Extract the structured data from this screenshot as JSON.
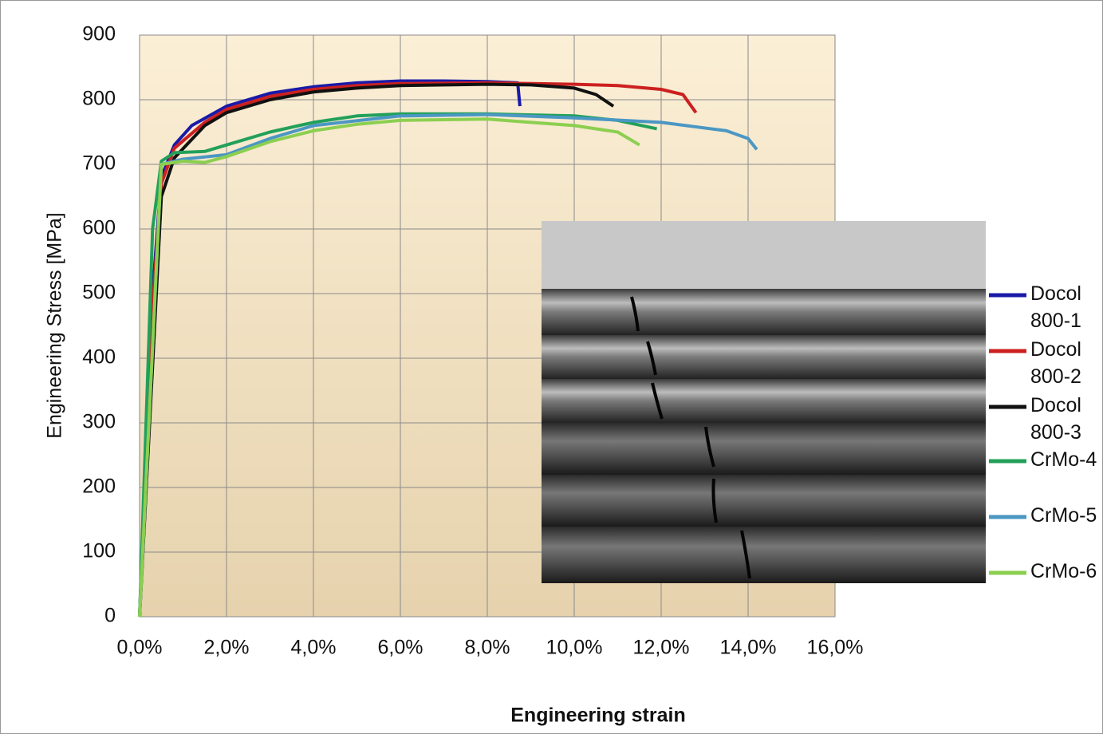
{
  "chart_data": {
    "type": "line",
    "x_label": "Engineering strain",
    "y_label": "Engineering Stress [MPa]",
    "xlim": [
      0,
      16
    ],
    "ylim": [
      0,
      900
    ],
    "xticks": [
      {
        "value": 0,
        "label": "0,0%"
      },
      {
        "value": 2,
        "label": "2,0%"
      },
      {
        "value": 4,
        "label": "4,0%"
      },
      {
        "value": 6,
        "label": "6,0%"
      },
      {
        "value": 8,
        "label": "8,0%"
      },
      {
        "value": 10,
        "label": "10,0%"
      },
      {
        "value": 12,
        "label": "12,0%"
      },
      {
        "value": 14,
        "label": "14,0%"
      },
      {
        "value": 16,
        "label": "16,0%"
      }
    ],
    "yticks": [
      0,
      100,
      200,
      300,
      400,
      500,
      600,
      700,
      800,
      900
    ],
    "grid": true,
    "legend": "right",
    "series": [
      {
        "name": "Docol 800-1",
        "color": "#1a1aa8",
        "x": [
          0,
          0.3,
          0.5,
          0.8,
          1.2,
          2,
          3,
          4,
          5,
          6,
          7,
          8,
          8.7,
          8.75
        ],
        "values": [
          0,
          500,
          680,
          730,
          760,
          790,
          810,
          820,
          826,
          829,
          829,
          828,
          826,
          790
        ]
      },
      {
        "name": "Docol 800-2",
        "color": "#cc2020",
        "x": [
          0,
          0.3,
          0.5,
          0.8,
          1.5,
          2,
          3,
          4,
          5,
          6,
          8,
          10,
          11,
          12,
          12.5,
          12.8
        ],
        "values": [
          0,
          480,
          670,
          725,
          765,
          785,
          805,
          816,
          822,
          825,
          826,
          824,
          822,
          816,
          808,
          780
        ]
      },
      {
        "name": "Docol 800-3",
        "color": "#111111",
        "x": [
          0,
          0.5,
          0.8,
          1.5,
          2,
          3,
          4,
          5,
          6,
          8,
          9,
          10,
          10.5,
          10.9
        ],
        "values": [
          0,
          650,
          710,
          760,
          780,
          800,
          812,
          818,
          822,
          824,
          823,
          818,
          808,
          790
        ]
      },
      {
        "name": "CrMo-4",
        "color": "#22a05a",
        "x": [
          0,
          0.3,
          0.5,
          0.8,
          1.5,
          2,
          3,
          4,
          5,
          6,
          8,
          10,
          11,
          11.9
        ],
        "values": [
          0,
          600,
          705,
          718,
          720,
          730,
          750,
          765,
          775,
          778,
          778,
          775,
          768,
          755
        ]
      },
      {
        "name": "CrMo-5",
        "color": "#4b97c4",
        "x": [
          0,
          0.5,
          1,
          2,
          3,
          4,
          6,
          8,
          10,
          12,
          13.5,
          14,
          14.2
        ],
        "values": [
          0,
          700,
          708,
          715,
          740,
          760,
          775,
          777,
          772,
          765,
          752,
          740,
          723
        ]
      },
      {
        "name": "CrMo-6",
        "color": "#8ccf50",
        "x": [
          0,
          0.5,
          1,
          1.5,
          2,
          3,
          4,
          5,
          6,
          8,
          10,
          11,
          11.5
        ],
        "values": [
          0,
          700,
          705,
          703,
          712,
          735,
          752,
          762,
          768,
          770,
          760,
          750,
          730
        ]
      }
    ]
  }
}
